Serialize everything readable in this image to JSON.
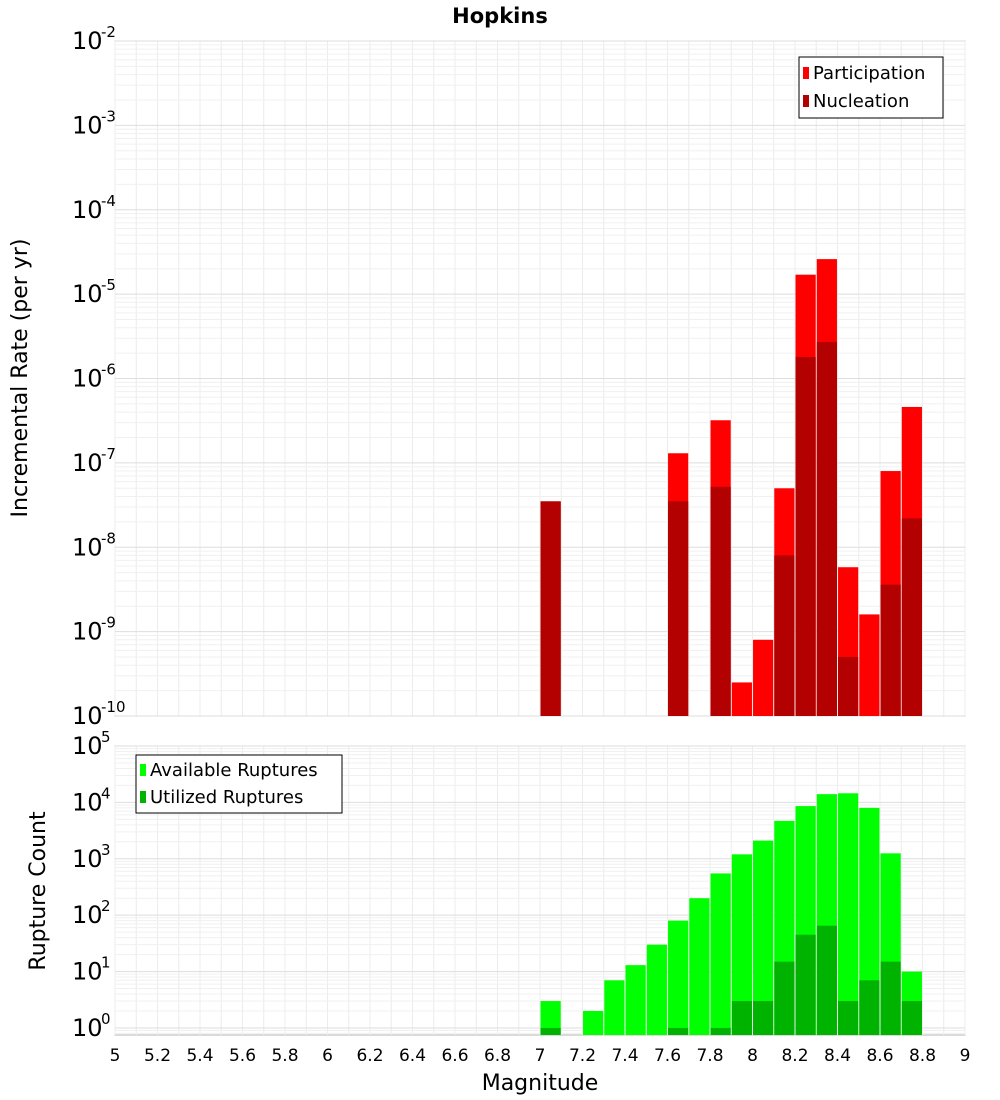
{
  "chart_data": [
    {
      "type": "bar",
      "title": "Hopkins",
      "xlabel": "",
      "ylabel": "Incremental Rate (per yr)",
      "yscale": "log",
      "ylim": [
        1e-10,
        0.01
      ],
      "xlim": [
        5,
        9
      ],
      "grid": true,
      "legend_position": "top-right",
      "y_tick_labels": [
        {
          "base": "10",
          "exp": "-10"
        },
        {
          "base": "10",
          "exp": "-9"
        },
        {
          "base": "10",
          "exp": "-8"
        },
        {
          "base": "10",
          "exp": "-7"
        },
        {
          "base": "10",
          "exp": "-6"
        },
        {
          "base": "10",
          "exp": "-5"
        },
        {
          "base": "10",
          "exp": "-4"
        },
        {
          "base": "10",
          "exp": "-3"
        },
        {
          "base": "10",
          "exp": "-2"
        }
      ],
      "bar_width": 0.095,
      "series": [
        {
          "name": "Participation",
          "color": "#ff0000",
          "points": [
            {
              "x": 7.05,
              "y": 3.5e-08
            },
            {
              "x": 7.65,
              "y": 1.3e-07
            },
            {
              "x": 7.85,
              "y": 3.2e-07
            },
            {
              "x": 7.95,
              "y": 2.5e-10
            },
            {
              "x": 8.05,
              "y": 8e-10
            },
            {
              "x": 8.15,
              "y": 5e-08
            },
            {
              "x": 8.25,
              "y": 1.7e-05
            },
            {
              "x": 8.35,
              "y": 2.6e-05
            },
            {
              "x": 8.45,
              "y": 5.8e-09
            },
            {
              "x": 8.55,
              "y": 1.6e-09
            },
            {
              "x": 8.65,
              "y": 8e-08
            },
            {
              "x": 8.75,
              "y": 4.6e-07
            }
          ]
        },
        {
          "name": "Nucleation",
          "color": "#b30000",
          "points": [
            {
              "x": 7.05,
              "y": 3.5e-08
            },
            {
              "x": 7.65,
              "y": 3.5e-08
            },
            {
              "x": 7.85,
              "y": 5.2e-08
            },
            {
              "x": 8.15,
              "y": 8e-09
            },
            {
              "x": 8.25,
              "y": 1.8e-06
            },
            {
              "x": 8.35,
              "y": 2.7e-06
            },
            {
              "x": 8.45,
              "y": 5e-10
            },
            {
              "x": 8.65,
              "y": 3.6e-09
            },
            {
              "x": 8.75,
              "y": 2.2e-08
            }
          ]
        }
      ]
    },
    {
      "type": "bar",
      "title": "",
      "xlabel": "Magnitude",
      "ylabel": "Rupture Count",
      "yscale": "log",
      "ylim": [
        0.75,
        100000
      ],
      "xlim": [
        5,
        9
      ],
      "grid": true,
      "legend_position": "top-left",
      "x_tick_labels": [
        "5",
        "5.2",
        "5.4",
        "5.6",
        "5.8",
        "6",
        "6.2",
        "6.4",
        "6.6",
        "6.8",
        "7",
        "7.2",
        "7.4",
        "7.6",
        "7.8",
        "8",
        "8.2",
        "8.4",
        "8.6",
        "8.8",
        "9"
      ],
      "y_tick_labels": [
        {
          "base": "10",
          "exp": "0"
        },
        {
          "base": "10",
          "exp": "1"
        },
        {
          "base": "10",
          "exp": "2"
        },
        {
          "base": "10",
          "exp": "3"
        },
        {
          "base": "10",
          "exp": "4"
        },
        {
          "base": "10",
          "exp": "5"
        }
      ],
      "bar_width": 0.095,
      "series": [
        {
          "name": "Available Ruptures",
          "color": "#00ff00",
          "points": [
            {
              "x": 7.05,
              "y": 3
            },
            {
              "x": 7.25,
              "y": 2
            },
            {
              "x": 7.35,
              "y": 7
            },
            {
              "x": 7.45,
              "y": 13
            },
            {
              "x": 7.55,
              "y": 30
            },
            {
              "x": 7.65,
              "y": 80
            },
            {
              "x": 7.75,
              "y": 200
            },
            {
              "x": 7.85,
              "y": 550
            },
            {
              "x": 7.95,
              "y": 1200
            },
            {
              "x": 8.05,
              "y": 2100
            },
            {
              "x": 8.15,
              "y": 4700
            },
            {
              "x": 8.25,
              "y": 8600
            },
            {
              "x": 8.35,
              "y": 14000
            },
            {
              "x": 8.45,
              "y": 14500
            },
            {
              "x": 8.55,
              "y": 8000
            },
            {
              "x": 8.65,
              "y": 1250
            },
            {
              "x": 8.75,
              "y": 10
            }
          ]
        },
        {
          "name": "Utilized Ruptures",
          "color": "#00b300",
          "points": [
            {
              "x": 7.05,
              "y": 1
            },
            {
              "x": 7.65,
              "y": 1
            },
            {
              "x": 7.85,
              "y": 1
            },
            {
              "x": 7.95,
              "y": 3
            },
            {
              "x": 8.05,
              "y": 3
            },
            {
              "x": 8.15,
              "y": 15
            },
            {
              "x": 8.25,
              "y": 45
            },
            {
              "x": 8.35,
              "y": 65
            },
            {
              "x": 8.45,
              "y": 3
            },
            {
              "x": 8.55,
              "y": 7
            },
            {
              "x": 8.65,
              "y": 15
            },
            {
              "x": 8.75,
              "y": 3
            }
          ]
        }
      ]
    }
  ]
}
